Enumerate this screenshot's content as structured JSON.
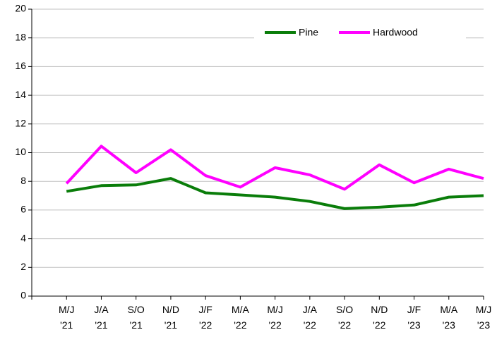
{
  "chart_data": {
    "type": "line",
    "categories": [
      "M/J '21",
      "J/A '21",
      "S/O '21",
      "N/D '21",
      "J/F '22",
      "M/A '22",
      "M/J '22",
      "J/A '22",
      "S/O '22",
      "N/D '22",
      "J/F '23",
      "M/A '23",
      "M/J '23"
    ],
    "series": [
      {
        "name": "Pine",
        "color": "#0a7d0a",
        "values": [
          7.3,
          7.7,
          7.75,
          8.2,
          7.2,
          7.05,
          6.9,
          6.6,
          6.1,
          6.2,
          6.35,
          6.9,
          7.0
        ]
      },
      {
        "name": "Hardwood",
        "color": "#ff00ff",
        "values": [
          7.85,
          10.45,
          8.6,
          10.2,
          8.4,
          7.6,
          8.95,
          8.45,
          7.45,
          9.15,
          7.9,
          8.85,
          8.2
        ]
      }
    ],
    "ylim": [
      0,
      20
    ],
    "yticks": [
      0,
      2,
      4,
      6,
      8,
      10,
      12,
      14,
      16,
      18,
      20
    ],
    "grid": true,
    "legend": "top"
  }
}
